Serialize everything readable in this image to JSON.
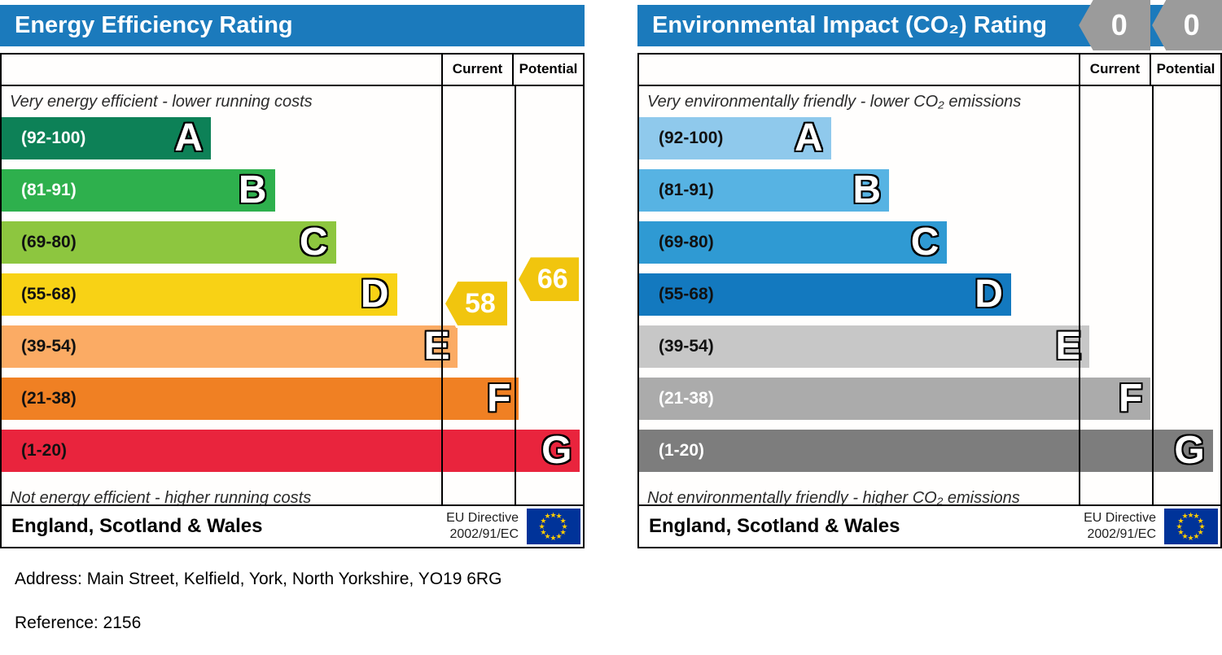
{
  "address": "Address: Main Street, Kelfield, York, North Yorkshire, YO19 6RG",
  "reference": "Reference: 2156",
  "header_color": "#1b7abc",
  "chart_data": [
    {
      "type": "bar",
      "variant": "epc-rating-scale",
      "title": "Energy Efficiency Rating",
      "columns": {
        "current": "Current",
        "potential": "Potential"
      },
      "top_caption": "Very energy efficient - lower running costs",
      "bottom_caption": "Not energy efficient - higher running costs",
      "value_display": "scale-markers",
      "bands": [
        {
          "letter": "A",
          "range_label": "(92-100)",
          "min": 92,
          "max": 100,
          "width_pct": 36,
          "color": "#0d8157",
          "label_color": "#ffffff"
        },
        {
          "letter": "B",
          "range_label": "(81-91)",
          "min": 81,
          "max": 91,
          "width_pct": 47,
          "color": "#2eb04d",
          "label_color": "#ffffff"
        },
        {
          "letter": "C",
          "range_label": "(69-80)",
          "min": 69,
          "max": 80,
          "width_pct": 57.5,
          "color": "#8dc63f",
          "label_color": "#111111"
        },
        {
          "letter": "D",
          "range_label": "(55-68)",
          "min": 55,
          "max": 68,
          "width_pct": 68,
          "color": "#f8d215",
          "label_color": "#111111"
        },
        {
          "letter": "E",
          "range_label": "(39-54)",
          "min": 39,
          "max": 54,
          "width_pct": 78.5,
          "color": "#fbab64",
          "label_color": "#111111"
        },
        {
          "letter": "F",
          "range_label": "(21-38)",
          "min": 21,
          "max": 38,
          "width_pct": 89,
          "color": "#f08023",
          "label_color": "#111111"
        },
        {
          "letter": "G",
          "range_label": "(1-20)",
          "min": 1,
          "max": 20,
          "width_pct": 99.5,
          "color": "#e9243d",
          "label_color": "#111111"
        }
      ],
      "current": 58,
      "potential": 66,
      "marker_color": "#f1c50e",
      "marker_text_color": "#ffffff",
      "footer": {
        "region": "England, Scotland & Wales",
        "directive_line1": "EU Directive",
        "directive_line2": "2002/91/EC",
        "flag_bg": "#003399",
        "flag_star_color": "#ffcc00",
        "flag_star_glyph": "★"
      }
    },
    {
      "type": "bar",
      "variant": "epc-rating-scale",
      "title": "Environmental Impact (CO₂) Rating",
      "columns": {
        "current": "Current",
        "potential": "Potential"
      },
      "top_caption": "Very environmentally friendly - lower CO₂ emissions",
      "bottom_caption": "Not environmentally friendly - higher CO₂ emissions",
      "value_display": "header-badges",
      "bands": [
        {
          "letter": "A",
          "range_label": "(92-100)",
          "min": 92,
          "max": 100,
          "width_pct": 33,
          "color": "#8fc9ec",
          "label_color": "#111111"
        },
        {
          "letter": "B",
          "range_label": "(81-91)",
          "min": 81,
          "max": 91,
          "width_pct": 43,
          "color": "#57b3e3",
          "label_color": "#111111"
        },
        {
          "letter": "C",
          "range_label": "(69-80)",
          "min": 69,
          "max": 80,
          "width_pct": 53,
          "color": "#2f9ad3",
          "label_color": "#111111"
        },
        {
          "letter": "D",
          "range_label": "(55-68)",
          "min": 55,
          "max": 68,
          "width_pct": 64,
          "color": "#1379bf",
          "label_color": "#111111"
        },
        {
          "letter": "E",
          "range_label": "(39-54)",
          "min": 39,
          "max": 54,
          "width_pct": 77.5,
          "color": "#c7c7c7",
          "label_color": "#111111"
        },
        {
          "letter": "F",
          "range_label": "(21-38)",
          "min": 21,
          "max": 38,
          "width_pct": 88,
          "color": "#ababab",
          "label_color": "#ffffff"
        },
        {
          "letter": "G",
          "range_label": "(1-20)",
          "min": 1,
          "max": 20,
          "width_pct": 98.7,
          "color": "#7d7d7d",
          "label_color": "#ffffff"
        }
      ],
      "current": 0,
      "potential": 0,
      "badge_color": "#9b9b9b",
      "badge_text_color": "#ffffff",
      "footer": {
        "region": "England, Scotland & Wales",
        "directive_line1": "EU Directive",
        "directive_line2": "2002/91/EC",
        "flag_bg": "#003399",
        "flag_star_color": "#ffcc00",
        "flag_star_glyph": "★"
      }
    }
  ]
}
